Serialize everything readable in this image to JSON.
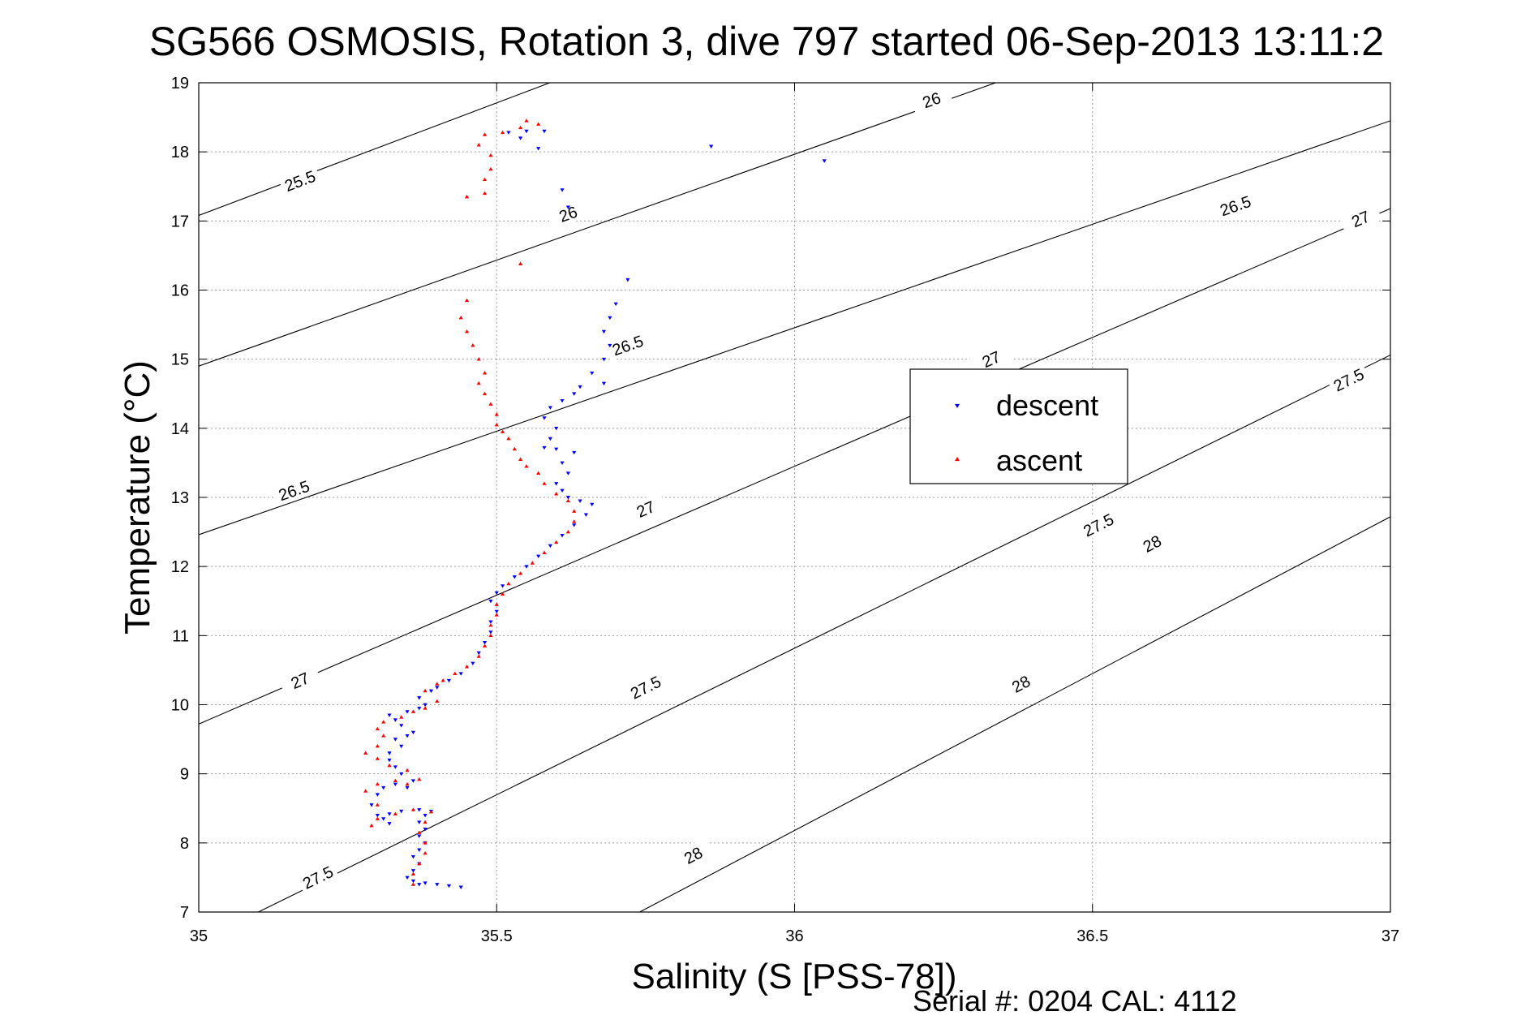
{
  "title": "SG566 OSMOSIS, Rotation 3, dive 797 started 06-Sep-2013 13:11:2",
  "footer": "Serial #: 0204  CAL: 4112",
  "chart_data": {
    "type": "scatter",
    "title": "SG566 OSMOSIS, Rotation 3, dive 797 started 06-Sep-2013 13:11:2",
    "xlabel": "Salinity (S [PSS-78])",
    "ylabel": "Temperature (°C)",
    "xlim": [
      35,
      37
    ],
    "ylim": [
      7,
      19
    ],
    "xticks": [
      35,
      35.5,
      36,
      36.5,
      37
    ],
    "xtick_labels": [
      "35",
      "35.5",
      "36",
      "36.5",
      "37"
    ],
    "yticks": [
      7,
      8,
      9,
      10,
      11,
      12,
      13,
      14,
      15,
      16,
      17,
      18,
      19
    ],
    "ytick_labels": [
      "7",
      "8",
      "9",
      "10",
      "11",
      "12",
      "13",
      "14",
      "15",
      "16",
      "17",
      "18",
      "19"
    ],
    "grid": true,
    "legend": {
      "placement": "center-right"
    },
    "colors": {
      "descent": "#0000ff",
      "ascent": "#ff0000",
      "contour": "#000000"
    },
    "isopycnals": [
      {
        "label": "25.5",
        "points": [
          [
            35.0,
            17.08
          ],
          [
            35.62,
            19.1
          ]
        ],
        "label_positions": [
          [
            35.17,
            17.58
          ]
        ]
      },
      {
        "label": "26",
        "points": [
          [
            35.0,
            14.9
          ],
          [
            36.37,
            19.1
          ]
        ],
        "label_positions": [
          [
            35.62,
            17.1
          ],
          [
            36.23,
            18.75
          ]
        ]
      },
      {
        "label": "26.5",
        "points": [
          [
            35.0,
            12.46
          ],
          [
            37.0,
            18.45
          ]
        ],
        "label_positions": [
          [
            35.16,
            13.1
          ],
          [
            35.72,
            15.2
          ],
          [
            36.74,
            17.22
          ]
        ]
      },
      {
        "label": "27",
        "points": [
          [
            35.0,
            9.72
          ],
          [
            37.0,
            17.18
          ]
        ],
        "label_positions": [
          [
            35.17,
            10.35
          ],
          [
            35.75,
            12.83
          ],
          [
            36.33,
            15.0
          ],
          [
            36.95,
            17.03
          ]
        ]
      },
      {
        "label": "27.5",
        "points": [
          [
            35.1,
            7.0
          ],
          [
            37.0,
            15.06
          ]
        ],
        "label_positions": [
          [
            35.2,
            7.5
          ],
          [
            35.75,
            10.25
          ],
          [
            36.51,
            12.6
          ],
          [
            36.93,
            14.7
          ]
        ]
      },
      {
        "label": "28",
        "points": [
          [
            35.74,
            7.0
          ],
          [
            37.0,
            12.72
          ]
        ],
        "label_positions": [
          [
            35.83,
            7.82
          ],
          [
            36.6,
            12.33
          ],
          [
            36.38,
            10.3
          ]
        ]
      }
    ],
    "series": [
      {
        "name": "descent",
        "marker": "triangle-down",
        "points": [
          [
            35.37,
            7.4
          ],
          [
            35.36,
            7.45
          ],
          [
            35.38,
            7.42
          ],
          [
            35.4,
            7.4
          ],
          [
            35.42,
            7.38
          ],
          [
            35.44,
            7.36
          ],
          [
            35.35,
            7.5
          ],
          [
            35.36,
            7.6
          ],
          [
            35.37,
            7.7
          ],
          [
            35.36,
            7.8
          ],
          [
            35.37,
            7.9
          ],
          [
            35.38,
            8.0
          ],
          [
            35.37,
            8.1
          ],
          [
            35.38,
            8.2
          ],
          [
            35.37,
            8.3
          ],
          [
            35.38,
            8.4
          ],
          [
            35.39,
            8.46
          ],
          [
            35.37,
            8.48
          ],
          [
            35.34,
            8.46
          ],
          [
            35.32,
            8.42
          ],
          [
            35.31,
            8.35
          ],
          [
            35.32,
            8.28
          ],
          [
            35.3,
            8.4
          ],
          [
            35.29,
            8.55
          ],
          [
            35.3,
            8.7
          ],
          [
            35.31,
            8.8
          ],
          [
            35.33,
            8.85
          ],
          [
            35.35,
            8.8
          ],
          [
            35.36,
            8.9
          ],
          [
            35.34,
            9.0
          ],
          [
            35.33,
            9.1
          ],
          [
            35.32,
            9.2
          ],
          [
            35.32,
            9.3
          ],
          [
            35.34,
            9.4
          ],
          [
            35.33,
            9.5
          ],
          [
            35.35,
            9.55
          ],
          [
            35.36,
            9.6
          ],
          [
            35.34,
            9.7
          ],
          [
            35.33,
            9.78
          ],
          [
            35.32,
            9.85
          ],
          [
            35.35,
            9.9
          ],
          [
            35.37,
            9.95
          ],
          [
            35.38,
            10.0
          ],
          [
            35.37,
            10.1
          ],
          [
            35.39,
            10.2
          ],
          [
            35.4,
            10.25
          ],
          [
            35.42,
            10.35
          ],
          [
            35.44,
            10.45
          ],
          [
            35.46,
            10.6
          ],
          [
            35.47,
            10.75
          ],
          [
            35.48,
            10.9
          ],
          [
            35.49,
            11.05
          ],
          [
            35.49,
            11.2
          ],
          [
            35.5,
            11.35
          ],
          [
            35.49,
            11.5
          ],
          [
            35.5,
            11.62
          ],
          [
            35.51,
            11.72
          ],
          [
            35.53,
            11.85
          ],
          [
            35.55,
            12.0
          ],
          [
            35.57,
            12.15
          ],
          [
            35.59,
            12.3
          ],
          [
            35.61,
            12.45
          ],
          [
            35.63,
            12.6
          ],
          [
            35.65,
            12.75
          ],
          [
            35.66,
            12.9
          ],
          [
            35.64,
            12.95
          ],
          [
            35.62,
            13.0
          ],
          [
            35.61,
            13.1
          ],
          [
            35.6,
            13.2
          ],
          [
            35.62,
            13.35
          ],
          [
            35.61,
            13.5
          ],
          [
            35.63,
            13.65
          ],
          [
            35.6,
            13.7
          ],
          [
            35.58,
            13.72
          ],
          [
            35.59,
            13.85
          ],
          [
            35.6,
            14.0
          ],
          [
            35.58,
            14.15
          ],
          [
            35.59,
            14.3
          ],
          [
            35.61,
            14.4
          ],
          [
            35.63,
            14.5
          ],
          [
            35.64,
            14.6
          ],
          [
            35.66,
            14.8
          ],
          [
            35.68,
            15.0
          ],
          [
            35.69,
            15.2
          ],
          [
            35.68,
            15.4
          ],
          [
            35.69,
            15.6
          ],
          [
            35.7,
            15.8
          ],
          [
            35.72,
            16.15
          ],
          [
            35.61,
            17.45
          ],
          [
            35.62,
            17.2
          ],
          [
            35.68,
            14.65
          ],
          [
            35.57,
            18.05
          ],
          [
            35.54,
            18.2
          ],
          [
            35.52,
            18.28
          ],
          [
            35.55,
            18.3
          ],
          [
            35.58,
            18.3
          ],
          [
            35.86,
            18.08
          ],
          [
            36.05,
            17.87
          ]
        ]
      },
      {
        "name": "ascent",
        "marker": "triangle-up",
        "points": [
          [
            35.36,
            7.4
          ],
          [
            35.36,
            7.55
          ],
          [
            35.37,
            7.7
          ],
          [
            35.38,
            7.85
          ],
          [
            35.38,
            8.0
          ],
          [
            35.37,
            8.15
          ],
          [
            35.38,
            8.3
          ],
          [
            35.39,
            8.45
          ],
          [
            35.36,
            8.48
          ],
          [
            35.33,
            8.42
          ],
          [
            35.3,
            8.35
          ],
          [
            35.29,
            8.25
          ],
          [
            35.3,
            8.55
          ],
          [
            35.28,
            8.75
          ],
          [
            35.3,
            8.85
          ],
          [
            35.33,
            8.9
          ],
          [
            35.35,
            8.85
          ],
          [
            35.37,
            8.92
          ],
          [
            35.35,
            9.05
          ],
          [
            35.32,
            9.12
          ],
          [
            35.3,
            9.22
          ],
          [
            35.28,
            9.3
          ],
          [
            35.3,
            9.4
          ],
          [
            35.31,
            9.55
          ],
          [
            35.3,
            9.65
          ],
          [
            35.31,
            9.75
          ],
          [
            35.34,
            9.82
          ],
          [
            35.36,
            9.9
          ],
          [
            35.38,
            9.95
          ],
          [
            35.4,
            10.05
          ],
          [
            35.38,
            10.2
          ],
          [
            35.4,
            10.3
          ],
          [
            35.41,
            10.35
          ],
          [
            35.43,
            10.45
          ],
          [
            35.45,
            10.55
          ],
          [
            35.47,
            10.7
          ],
          [
            35.48,
            10.85
          ],
          [
            35.49,
            11.0
          ],
          [
            35.49,
            11.15
          ],
          [
            35.5,
            11.3
          ],
          [
            35.5,
            11.45
          ],
          [
            35.51,
            11.6
          ],
          [
            35.52,
            11.75
          ],
          [
            35.54,
            11.9
          ],
          [
            35.56,
            12.05
          ],
          [
            35.58,
            12.2
          ],
          [
            35.6,
            12.35
          ],
          [
            35.62,
            12.5
          ],
          [
            35.63,
            12.65
          ],
          [
            35.63,
            12.8
          ],
          [
            35.62,
            12.95
          ],
          [
            35.6,
            13.05
          ],
          [
            35.58,
            13.2
          ],
          [
            35.57,
            13.35
          ],
          [
            35.55,
            13.45
          ],
          [
            35.54,
            13.55
          ],
          [
            35.53,
            13.7
          ],
          [
            35.52,
            13.85
          ],
          [
            35.51,
            13.95
          ],
          [
            35.5,
            14.05
          ],
          [
            35.5,
            14.2
          ],
          [
            35.49,
            14.35
          ],
          [
            35.48,
            14.5
          ],
          [
            35.47,
            14.65
          ],
          [
            35.48,
            14.8
          ],
          [
            35.47,
            15.0
          ],
          [
            35.46,
            15.2
          ],
          [
            35.45,
            15.4
          ],
          [
            35.44,
            15.6
          ],
          [
            35.45,
            15.85
          ],
          [
            35.54,
            16.38
          ],
          [
            35.45,
            17.35
          ],
          [
            35.48,
            17.4
          ],
          [
            35.48,
            17.6
          ],
          [
            35.49,
            17.75
          ],
          [
            35.49,
            17.95
          ],
          [
            35.47,
            18.1
          ],
          [
            35.48,
            18.25
          ],
          [
            35.51,
            18.28
          ],
          [
            35.54,
            18.35
          ],
          [
            35.55,
            18.45
          ],
          [
            35.57,
            18.4
          ]
        ]
      }
    ]
  }
}
